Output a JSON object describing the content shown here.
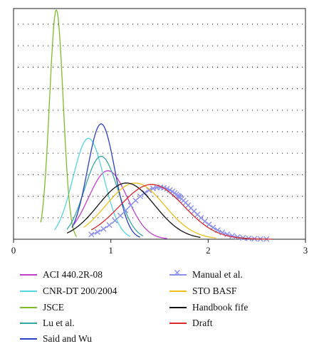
{
  "chart_data": {
    "type": "line",
    "title": "",
    "xlabel": "",
    "ylabel": "",
    "xlim": [
      0,
      3
    ],
    "ylim": [
      0,
      3.2
    ],
    "x_ticks": [
      "0",
      "1",
      "2",
      "3"
    ],
    "grid": "dotted horizontal",
    "legend_position": "bottom",
    "series": [
      {
        "name": "ACI 440.2R-08",
        "color": "#c03fd0",
        "kind": "normal",
        "mean": 0.97,
        "sd": 0.2,
        "peak": 0.95,
        "xmin": 0.62,
        "xmax": 1.58
      },
      {
        "name": "CNR-DT 200/2004",
        "color": "#55d4e4",
        "kind": "normal",
        "mean": 0.77,
        "sd": 0.16,
        "peak": 1.4,
        "xmin": 0.42,
        "xmax": 1.2
      },
      {
        "name": "JSCE",
        "color": "#7fba2c",
        "kind": "normal",
        "mean": 0.44,
        "sd": 0.07,
        "peak": 3.18,
        "xmin": 0.28,
        "xmax": 0.65
      },
      {
        "name": "Lu et al.",
        "color": "#37a9a5",
        "kind": "normal",
        "mean": 0.9,
        "sd": 0.17,
        "peak": 1.15,
        "xmin": 0.55,
        "xmax": 1.33
      },
      {
        "name": "Said and Wu",
        "color": "#2a3fc6",
        "kind": "normal",
        "mean": 0.9,
        "sd": 0.14,
        "peak": 1.6,
        "xmin": 0.6,
        "xmax": 1.3
      },
      {
        "name": "Manual et al.",
        "color": "#8b8ff0",
        "kind": "markers",
        "mean": 1.5,
        "sd": 0.32,
        "peak": 0.72,
        "xmin": 0.8,
        "xmax": 2.6
      },
      {
        "name": "STO BASF",
        "color": "#f0be1c",
        "kind": "normal",
        "mean": 1.25,
        "sd": 0.3,
        "peak": 0.78,
        "xmin": 0.72,
        "xmax": 2.08
      },
      {
        "name": "Handbook fife",
        "color": "#111111",
        "kind": "normal",
        "mean": 1.16,
        "sd": 0.29,
        "peak": 0.78,
        "xmin": 0.55,
        "xmax": 1.92
      },
      {
        "name": "Draft",
        "color": "#d92a2a",
        "kind": "normal",
        "mean": 1.42,
        "sd": 0.33,
        "peak": 0.76,
        "xmin": 0.8,
        "xmax": 2.65
      }
    ]
  }
}
